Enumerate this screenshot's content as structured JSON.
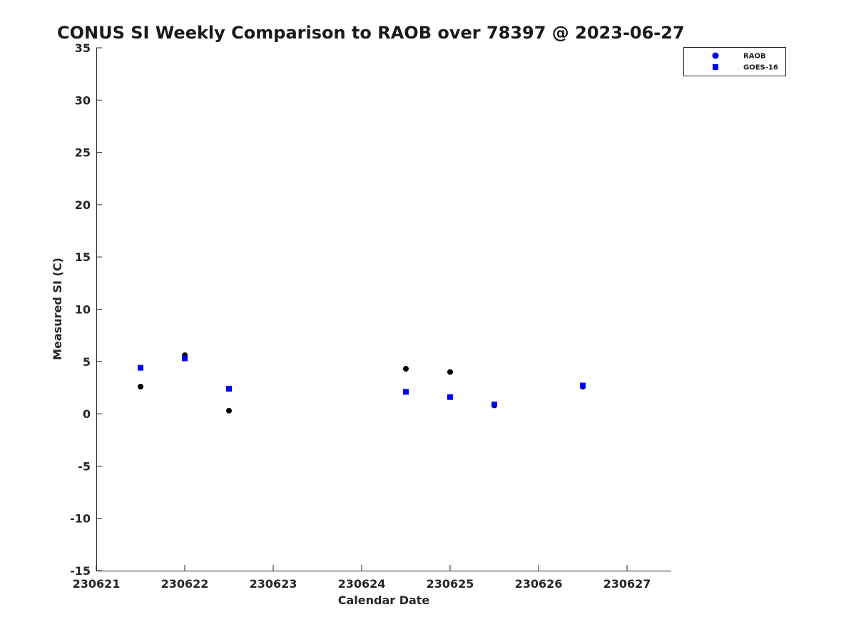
{
  "chart_data": {
    "type": "scatter",
    "title": "CONUS SI Weekly Comparison to RAOB over 78397 @ 2023-06-27",
    "xlabel": "Calendar Date",
    "ylabel": "Measured SI (C)",
    "xlim": [
      230621,
      230627.5
    ],
    "ylim": [
      -15,
      35
    ],
    "xticks": [
      230621,
      230622,
      230623,
      230624,
      230625,
      230626,
      230627
    ],
    "xtick_labels": [
      "230621",
      "230622",
      "230623",
      "230624",
      "230625",
      "230626",
      "230627"
    ],
    "yticks": [
      -15,
      -10,
      -5,
      0,
      5,
      10,
      15,
      20,
      25,
      30,
      35
    ],
    "ytick_labels": [
      "-15",
      "-10",
      "-5",
      "0",
      "5",
      "10",
      "15",
      "20",
      "25",
      "30",
      "35"
    ],
    "grid": false,
    "legend_position": "top-right",
    "series": [
      {
        "name": "RAOB",
        "marker": "circle",
        "legend_color": "#0000ff",
        "color": "#000000",
        "x": [
          230621.5,
          230622,
          230622.5,
          230624.5,
          230625,
          230625.5,
          230626.5
        ],
        "y": [
          2.6,
          5.6,
          0.3,
          4.3,
          4.0,
          0.8,
          2.6
        ]
      },
      {
        "name": "GOES-16",
        "marker": "square",
        "color": "#0000ff",
        "x": [
          230621.5,
          230622,
          230622.5,
          230624.5,
          230625,
          230625.5,
          230626.5
        ],
        "y": [
          4.4,
          5.3,
          2.4,
          2.1,
          1.6,
          0.9,
          2.7
        ]
      }
    ]
  }
}
